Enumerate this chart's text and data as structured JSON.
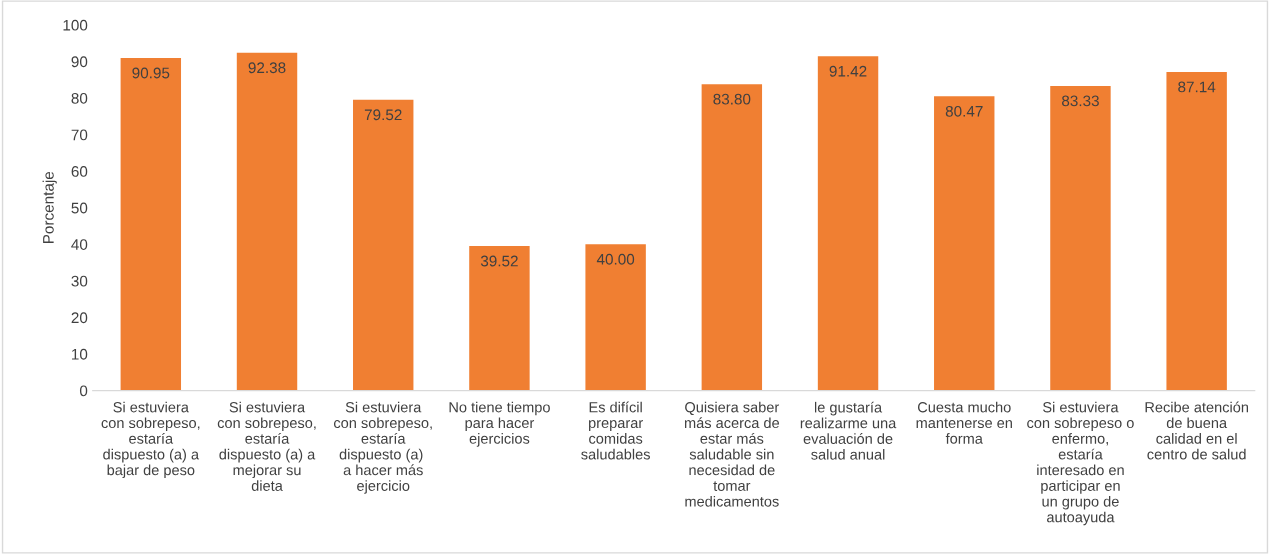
{
  "chart_data": {
    "type": "bar",
    "ylabel": "Porcentaje",
    "categories": [
      "Si estuviera con sobrepeso, estaría dispuesto (a) a bajar de peso",
      "Si estuviera con sobrepeso, estaría dispuesto (a) a mejorar su dieta",
      "Si estuviera con sobrepeso, estaría dispuesto (a)  a hacer más ejercicio",
      "No tiene tiempo para hacer ejercicios",
      "Es difícil preparar comidas saludables",
      "Quisiera saber más acerca de estar más saludable sin necesidad de tomar medicamentos",
      "le gustaría realizarme una evaluación de salud anual",
      "Cuesta mucho mantenerse en forma",
      "Si estuviera con sobrepeso o enfermo, estaría interesado en participar en un grupo de autoayuda",
      "Recibe atención de buena calidad en el centro de salud"
    ],
    "values": [
      90.95,
      92.38,
      79.52,
      39.52,
      40.0,
      83.8,
      91.42,
      80.47,
      83.33,
      87.14
    ],
    "value_labels": [
      "90.95",
      "92.38",
      "79.52",
      "39.52",
      "40.00",
      "83.80",
      "91.42",
      "80.47",
      "83.33",
      "87.14"
    ],
    "color": "#f07f32",
    "ylim": [
      0,
      100
    ],
    "yticks": [
      0,
      10,
      20,
      30,
      40,
      50,
      60,
      70,
      80,
      90,
      100
    ],
    "grid": false,
    "legend": false
  }
}
